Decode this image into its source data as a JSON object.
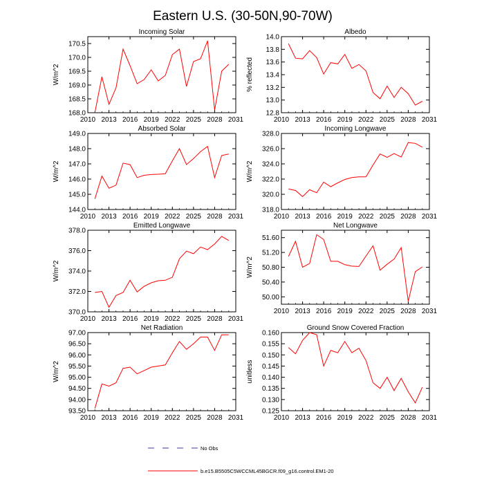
{
  "title": "Eastern U.S. (30-50N,90-70W)",
  "legend": {
    "no_obs_label": "No Obs",
    "no_obs_color": "#3a3aa0",
    "model_label": "b.e15.B5505C5WCCML45BGCR.f09_g16.control.EM1-20",
    "model_color": "#ff0000"
  },
  "chart_data": [
    {
      "type": "line",
      "title": "Incoming Solar",
      "ylabel": "W/m^2",
      "xlim": [
        2010,
        2031
      ],
      "xticks": [
        "2010",
        "2013",
        "2016",
        "2019",
        "2022",
        "2025",
        "2028",
        "2031"
      ],
      "ylim": [
        168.0,
        170.75
      ],
      "yticks": [
        "168.0",
        "168.5",
        "169.0",
        "169.5",
        "170.0",
        "170.5"
      ],
      "series": [
        {
          "name": "b.e15.B5505C5WCCML45BGCR.f09_g16.control.EM1-20",
          "x": [
            2011,
            2012,
            2013,
            2014,
            2015,
            2016,
            2017,
            2018,
            2019,
            2020,
            2021,
            2022,
            2023,
            2024,
            2025,
            2026,
            2027,
            2028,
            2029,
            2030
          ],
          "values": [
            168.0,
            169.3,
            168.3,
            168.9,
            170.3,
            169.7,
            169.05,
            169.2,
            169.55,
            169.15,
            169.35,
            170.1,
            170.3,
            168.95,
            169.85,
            169.95,
            170.6,
            168.1,
            169.5,
            169.75
          ]
        }
      ]
    },
    {
      "type": "line",
      "title": "Albedo",
      "ylabel": "% reflected",
      "xlim": [
        2010,
        2031
      ],
      "xticks": [
        "2010",
        "2013",
        "2016",
        "2019",
        "2022",
        "2025",
        "2028",
        "2031"
      ],
      "ylim": [
        12.8,
        14.0
      ],
      "yticks": [
        "12.8",
        "13.0",
        "13.2",
        "13.4",
        "13.6",
        "13.8",
        "14.0"
      ],
      "series": [
        {
          "name": "b.e15.B5505C5WCCML45BGCR.f09_g16.control.EM1-20",
          "x": [
            2011,
            2012,
            2013,
            2014,
            2015,
            2016,
            2017,
            2018,
            2019,
            2020,
            2021,
            2022,
            2023,
            2024,
            2025,
            2026,
            2027,
            2028,
            2029,
            2030
          ],
          "values": [
            13.89,
            13.66,
            13.65,
            13.78,
            13.67,
            13.41,
            13.59,
            13.57,
            13.72,
            13.5,
            13.56,
            13.46,
            13.12,
            13.02,
            13.22,
            13.04,
            13.2,
            13.1,
            12.92,
            12.98
          ]
        }
      ]
    },
    {
      "type": "line",
      "title": "Absorbed Solar",
      "ylabel": "W/m^2",
      "xlim": [
        2010,
        2031
      ],
      "xticks": [
        "2010",
        "2013",
        "2016",
        "2019",
        "2022",
        "2025",
        "2028",
        "2031"
      ],
      "ylim": [
        144.0,
        149.0
      ],
      "yticks": [
        "144.0",
        "145.0",
        "146.0",
        "147.0",
        "148.0",
        "149.0"
      ],
      "series": [
        {
          "name": "b.e15.B5505C5WCCML45BGCR.f09_g16.control.EM1-20",
          "x": [
            2011,
            2012,
            2013,
            2014,
            2015,
            2016,
            2017,
            2018,
            2019,
            2020,
            2021,
            2022,
            2023,
            2024,
            2025,
            2026,
            2027,
            2028,
            2029,
            2030
          ],
          "values": [
            144.7,
            146.2,
            145.4,
            145.6,
            147.05,
            146.95,
            146.1,
            146.25,
            146.3,
            146.32,
            146.35,
            147.2,
            148.0,
            146.95,
            147.35,
            147.8,
            148.15,
            146.1,
            147.55,
            147.65
          ]
        }
      ]
    },
    {
      "type": "line",
      "title": "Incoming Longwave",
      "ylabel": "W/m^2",
      "xlim": [
        2010,
        2031
      ],
      "xticks": [
        "2010",
        "2013",
        "2016",
        "2019",
        "2022",
        "2025",
        "2028",
        "2031"
      ],
      "ylim": [
        318.0,
        328.0
      ],
      "yticks": [
        "318.0",
        "320.0",
        "322.0",
        "324.0",
        "326.0",
        "328.0"
      ],
      "series": [
        {
          "name": "b.e15.B5505C5WCCML45BGCR.f09_g16.control.EM1-20",
          "x": [
            2011,
            2012,
            2013,
            2014,
            2015,
            2016,
            2017,
            2018,
            2019,
            2020,
            2021,
            2022,
            2023,
            2024,
            2025,
            2026,
            2027,
            2028,
            2029,
            2030
          ],
          "values": [
            320.7,
            320.5,
            319.7,
            320.6,
            320.2,
            321.6,
            321.0,
            321.5,
            321.95,
            322.2,
            322.3,
            322.3,
            323.85,
            325.3,
            324.85,
            325.35,
            324.9,
            326.8,
            326.7,
            326.2
          ]
        }
      ]
    },
    {
      "type": "line",
      "title": "Emitted Longwave",
      "ylabel": "W/m^2",
      "xlim": [
        2010,
        2031
      ],
      "xticks": [
        "2010",
        "2013",
        "2016",
        "2019",
        "2022",
        "2025",
        "2028",
        "2031"
      ],
      "ylim": [
        370.0,
        378.0
      ],
      "yticks": [
        "370.0",
        "372.0",
        "374.0",
        "376.0",
        "378.0"
      ],
      "series": [
        {
          "name": "b.e15.B5505C5WCCML45BGCR.f09_g16.control.EM1-20",
          "x": [
            2011,
            2012,
            2013,
            2014,
            2015,
            2016,
            2017,
            2018,
            2019,
            2020,
            2021,
            2022,
            2023,
            2024,
            2025,
            2026,
            2027,
            2028,
            2029,
            2030
          ],
          "values": [
            371.9,
            372.0,
            370.45,
            371.6,
            371.9,
            373.1,
            371.95,
            372.5,
            372.85,
            373.05,
            373.1,
            373.4,
            375.2,
            375.95,
            375.7,
            376.35,
            376.1,
            376.65,
            377.4,
            377.0
          ]
        }
      ]
    },
    {
      "type": "line",
      "title": "Net Longwave",
      "ylabel": "W/m^2",
      "xlim": [
        2010,
        2031
      ],
      "xticks": [
        "2010",
        "2013",
        "2016",
        "2019",
        "2022",
        "2025",
        "2028",
        "2031"
      ],
      "ylim": [
        49.8,
        51.8
      ],
      "yticks": [
        "50.00",
        "50.40",
        "50.80",
        "51.20",
        "51.60"
      ],
      "series": [
        {
          "name": "b.e15.B5505C5WCCML45BGCR.f09_g16.control.EM1-20",
          "x": [
            2011,
            2012,
            2013,
            2014,
            2015,
            2016,
            2017,
            2018,
            2019,
            2020,
            2021,
            2022,
            2023,
            2024,
            2025,
            2026,
            2027,
            2028,
            2029,
            2030
          ],
          "values": [
            51.09,
            51.5,
            50.8,
            50.9,
            51.68,
            51.55,
            50.96,
            50.96,
            50.87,
            50.83,
            50.82,
            51.1,
            51.38,
            50.72,
            50.88,
            51.02,
            51.33,
            49.88,
            50.68,
            50.81
          ]
        }
      ]
    },
    {
      "type": "line",
      "title": "Net Radiation",
      "ylabel": "W/m^2",
      "xlim": [
        2010,
        2031
      ],
      "xticks": [
        "2010",
        "2013",
        "2016",
        "2019",
        "2022",
        "2025",
        "2028",
        "2031"
      ],
      "ylim": [
        93.5,
        97.0
      ],
      "yticks": [
        "93.50",
        "94.00",
        "94.50",
        "95.00",
        "95.50",
        "96.00",
        "96.50",
        "97.00"
      ],
      "series": [
        {
          "name": "b.e15.B5505C5WCCML45BGCR.f09_g16.control.EM1-20",
          "x": [
            2011,
            2012,
            2013,
            2014,
            2015,
            2016,
            2017,
            2018,
            2019,
            2020,
            2021,
            2022,
            2023,
            2024,
            2025,
            2026,
            2027,
            2028,
            2029,
            2030
          ],
          "values": [
            93.6,
            94.7,
            94.6,
            94.75,
            95.4,
            95.45,
            95.15,
            95.3,
            95.45,
            95.5,
            95.55,
            96.1,
            96.6,
            96.25,
            96.5,
            96.8,
            96.8,
            96.2,
            96.9,
            96.9
          ]
        }
      ]
    },
    {
      "type": "line",
      "title": "Ground Snow Covered Fraction",
      "ylabel": "unitless",
      "xlim": [
        2010,
        2031
      ],
      "xticks": [
        "2010",
        "2013",
        "2016",
        "2019",
        "2022",
        "2025",
        "2028",
        "2031"
      ],
      "ylim": [
        0.125,
        0.16
      ],
      "yticks": [
        "0.125",
        "0.130",
        "0.135",
        "0.140",
        "0.145",
        "0.150",
        "0.155",
        "0.160"
      ],
      "series": [
        {
          "name": "b.e15.B5505C5WCCML45BGCR.f09_g16.control.EM1-20",
          "x": [
            2011,
            2012,
            2013,
            2014,
            2015,
            2016,
            2017,
            2018,
            2019,
            2020,
            2021,
            2022,
            2023,
            2024,
            2025,
            2026,
            2027,
            2028,
            2029,
            2030
          ],
          "values": [
            0.1533,
            0.1505,
            0.1565,
            0.16,
            0.159,
            0.145,
            0.152,
            0.151,
            0.156,
            0.151,
            0.153,
            0.1475,
            0.1375,
            0.135,
            0.14,
            0.134,
            0.1395,
            0.1335,
            0.1285,
            0.1355
          ]
        }
      ]
    }
  ]
}
